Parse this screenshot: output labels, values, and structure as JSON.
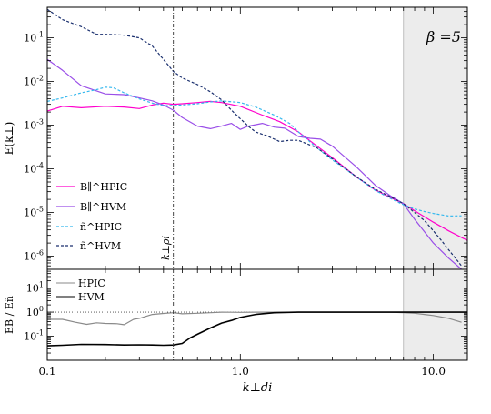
{
  "chart_data": [
    {
      "type": "line",
      "panel": "top",
      "ylabel": "E(k⊥)",
      "xscale": "log",
      "yscale": "log",
      "xlim": [
        0.1,
        15
      ],
      "ylim": [
        5e-07,
        0.5
      ],
      "x_ticks": [
        "0.1",
        "1.0",
        "10.0"
      ],
      "y_ticks": [
        "10^-1",
        "10^-2",
        "10^-3",
        "10^-4",
        "10^-5",
        "10^-6"
      ],
      "annotation": "β =5",
      "vline_label": "k⊥ρi",
      "vline_x": 0.45,
      "shaded_from_x": 7.0,
      "colors": {
        "magenta": "#ff00cc",
        "purple": "#9a4ee8",
        "cyan": "#35b8ee",
        "navy": "#1a2f6e",
        "shade": "#ececec"
      },
      "series": [
        {
          "name": "B∥^HPIC",
          "style": "solid",
          "color": "#ff00cc",
          "x": [
            0.1,
            0.12,
            0.15,
            0.2,
            0.25,
            0.3,
            0.35,
            0.4,
            0.45,
            0.5,
            0.6,
            0.7,
            0.8,
            1.0,
            1.3,
            1.6,
            2.0,
            2.5,
            3.0,
            4.0,
            5.0,
            6.0,
            7.0,
            8.0,
            10.0,
            12.0,
            15.0
          ],
          "y": [
            0.0021,
            0.0027,
            0.0025,
            0.0027,
            0.0026,
            0.0024,
            0.0029,
            0.0032,
            0.003,
            0.0031,
            0.0033,
            0.0035,
            0.0033,
            0.0027,
            0.0017,
            0.0012,
            0.0007,
            0.00033,
            0.00018,
            6.5e-05,
            3.3e-05,
            2.2e-05,
            1.6e-05,
            1.1e-05,
            6e-06,
            3.8e-06,
            2.3e-06
          ]
        },
        {
          "name": "B∥^HVM",
          "style": "solid",
          "color": "#9a4ee8",
          "x": [
            0.1,
            0.12,
            0.15,
            0.2,
            0.25,
            0.3,
            0.35,
            0.4,
            0.45,
            0.5,
            0.6,
            0.7,
            0.8,
            0.9,
            1.0,
            1.1,
            1.3,
            1.5,
            1.7,
            2.0,
            2.3,
            2.6,
            3.0,
            4.0,
            5.0,
            6.0,
            7.0,
            8.0,
            10.0,
            12.0,
            14.0
          ],
          "y": [
            0.032,
            0.018,
            0.008,
            0.0052,
            0.005,
            0.0042,
            0.0036,
            0.0029,
            0.0022,
            0.0015,
            0.00095,
            0.00083,
            0.00095,
            0.0011,
            0.0008,
            0.00095,
            0.0011,
            0.0009,
            0.00085,
            0.00055,
            0.0005,
            0.00048,
            0.00033,
            0.00011,
            4.2e-05,
            2.4e-05,
            1.6e-05,
            7e-06,
            2e-06,
            9e-07,
            4e-07
          ]
        },
        {
          "name": "ñ^HPIC",
          "style": "dashed",
          "color": "#35b8ee",
          "x": [
            0.1,
            0.12,
            0.15,
            0.18,
            0.2,
            0.22,
            0.25,
            0.3,
            0.35,
            0.4,
            0.5,
            0.6,
            0.7,
            0.8,
            1.0,
            1.2,
            1.5,
            1.8,
            2.0,
            2.5,
            3.0,
            4.0,
            5.0,
            6.0,
            7.0,
            8.0,
            9.0,
            10.0,
            12.0,
            14.0
          ],
          "y": [
            0.0035,
            0.0042,
            0.0055,
            0.0065,
            0.0074,
            0.0072,
            0.0055,
            0.004,
            0.0032,
            0.0028,
            0.0029,
            0.0031,
            0.0034,
            0.0036,
            0.0033,
            0.0026,
            0.0017,
            0.0011,
            0.0007,
            0.0003,
            0.00016,
            6.5e-05,
            3.2e-05,
            2.1e-05,
            1.5e-05,
            1.2e-05,
            1.05e-05,
            9.5e-06,
            8.3e-06,
            8.4e-06
          ]
        },
        {
          "name": "ñ^HVM",
          "style": "dashed",
          "color": "#1a2f6e",
          "x": [
            0.1,
            0.12,
            0.15,
            0.18,
            0.2,
            0.25,
            0.3,
            0.35,
            0.4,
            0.45,
            0.5,
            0.6,
            0.7,
            0.8,
            0.9,
            1.0,
            1.1,
            1.2,
            1.4,
            1.6,
            1.8,
            2.0,
            2.5,
            3.0,
            4.0,
            5.0,
            6.0,
            7.0,
            8.0,
            9.0,
            10.0,
            11.0,
            12.0,
            13.0,
            14.0
          ],
          "y": [
            0.45,
            0.26,
            0.18,
            0.12,
            0.12,
            0.115,
            0.1,
            0.065,
            0.032,
            0.017,
            0.012,
            0.0085,
            0.0058,
            0.0038,
            0.0022,
            0.0014,
            0.00095,
            0.0007,
            0.00055,
            0.00042,
            0.00045,
            0.00045,
            0.0003,
            0.00017,
            6.5e-05,
            3.4e-05,
            2.3e-05,
            1.6e-05,
            1e-05,
            6.5e-06,
            3.8e-06,
            2.3e-06,
            1.4e-06,
            9e-07,
            6e-07
          ]
        }
      ]
    },
    {
      "type": "line",
      "panel": "bottom",
      "xlabel": "k⊥di",
      "ylabel": "EB / Eñ",
      "xscale": "log",
      "yscale": "log",
      "xlim": [
        0.1,
        15
      ],
      "ylim": [
        0.01,
        60
      ],
      "y_ticks": [
        "10^1",
        "10^0",
        "10^-1"
      ],
      "x_ticks": [
        "0.1",
        "1.0",
        "10.0"
      ],
      "series": [
        {
          "name": "HPIC",
          "style": "solid",
          "color": "#8a8a8a",
          "x": [
            0.1,
            0.12,
            0.14,
            0.16,
            0.18,
            0.2,
            0.23,
            0.25,
            0.28,
            0.3,
            0.35,
            0.4,
            0.45,
            0.5,
            0.6,
            0.7,
            0.8,
            1.0,
            1.2,
            1.5,
            2.0,
            3.0,
            4.0,
            5.0,
            6.0,
            7.0,
            8.0,
            9.0,
            10.0,
            12.0,
            14.0
          ],
          "y": [
            0.5,
            0.5,
            0.38,
            0.31,
            0.36,
            0.34,
            0.33,
            0.3,
            0.5,
            0.55,
            0.8,
            0.88,
            0.95,
            0.85,
            0.9,
            0.95,
            1.0,
            0.98,
            1.0,
            1.0,
            1.0,
            1.0,
            1.0,
            1.0,
            1.0,
            0.95,
            0.9,
            0.8,
            0.72,
            0.55,
            0.38
          ]
        },
        {
          "name": "HVM",
          "style": "solid",
          "color": "#000000",
          "x": [
            0.1,
            0.12,
            0.15,
            0.2,
            0.25,
            0.3,
            0.35,
            0.4,
            0.45,
            0.5,
            0.55,
            0.6,
            0.7,
            0.8,
            0.9,
            1.0,
            1.2,
            1.5,
            2.0,
            2.5,
            3.0,
            4.0,
            5.0,
            6.0,
            7.0,
            8.0,
            10.0,
            12.0,
            15.0
          ],
          "y": [
            0.04,
            0.042,
            0.046,
            0.045,
            0.043,
            0.044,
            0.043,
            0.042,
            0.043,
            0.05,
            0.085,
            0.12,
            0.22,
            0.35,
            0.45,
            0.6,
            0.8,
            0.95,
            1.0,
            1.0,
            1.0,
            1.0,
            1.0,
            1.0,
            1.0,
            1.0,
            1.0,
            1.0,
            1.0
          ]
        }
      ]
    }
  ]
}
